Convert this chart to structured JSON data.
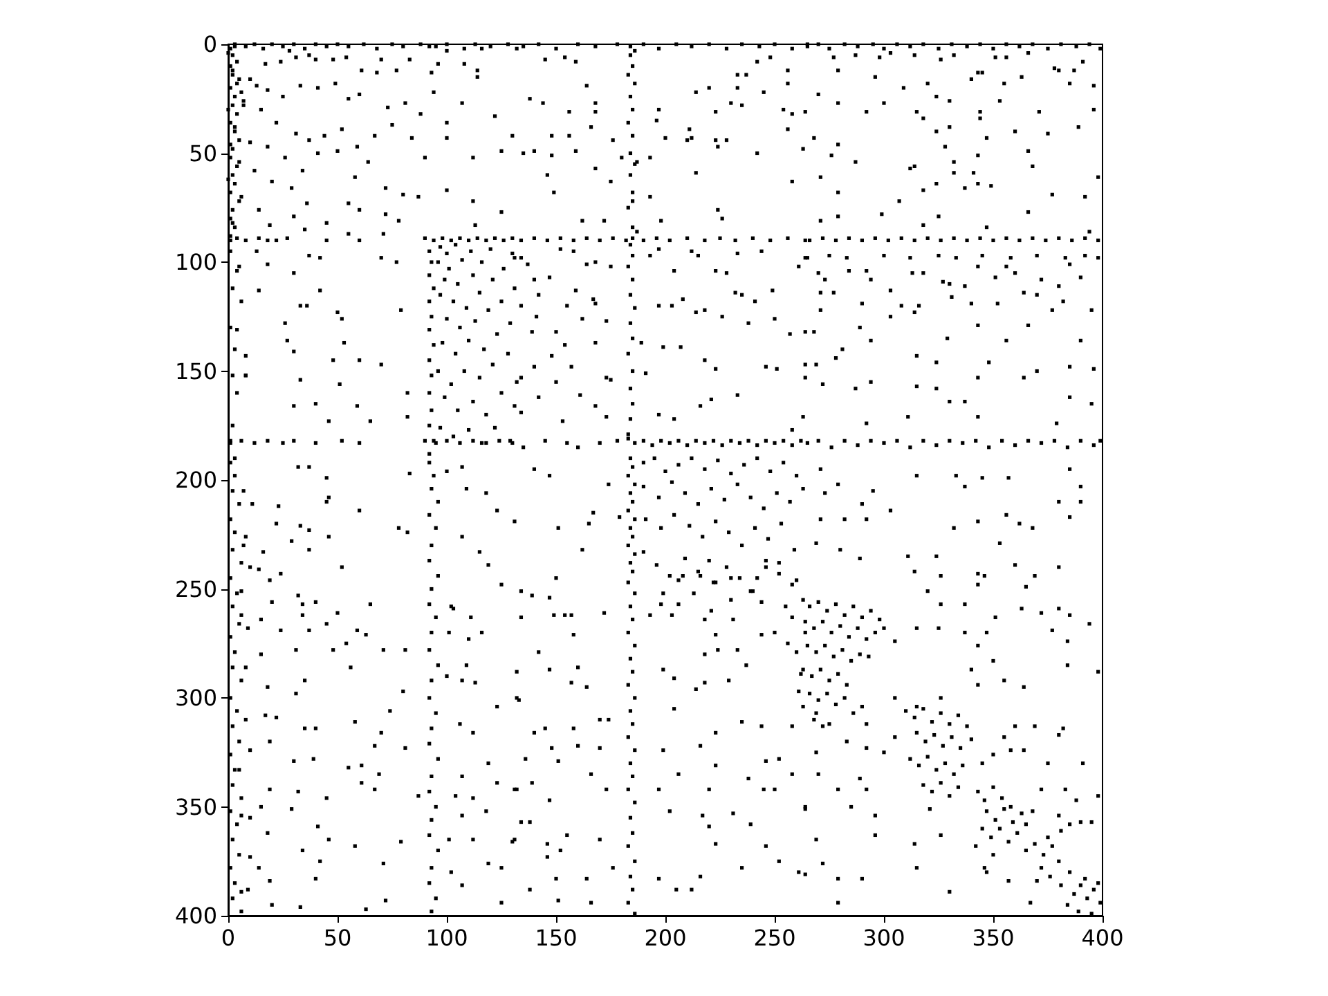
{
  "chart_data": {
    "type": "scatter",
    "color": "#000000",
    "marker": "square",
    "xlim": [
      0,
      400
    ],
    "ylim": [
      400,
      0
    ],
    "xticks": [
      0,
      50,
      100,
      150,
      200,
      250,
      300,
      350,
      400
    ],
    "yticks": [
      0,
      50,
      100,
      150,
      200,
      250,
      300,
      350,
      400
    ],
    "x": [
      1,
      3,
      2,
      4,
      1,
      2,
      5,
      1,
      3,
      2,
      4,
      1,
      3,
      5,
      2,
      1,
      4,
      2,
      3,
      1,
      5,
      2,
      1,
      3,
      1,
      0,
      2,
      4,
      6,
      0,
      3,
      7,
      1,
      5,
      0,
      6,
      2,
      1,
      4,
      2,
      6,
      1,
      3,
      2,
      4,
      8,
      2,
      1,
      3,
      3,
      8,
      12,
      16,
      20,
      25,
      30,
      35,
      40,
      45,
      50,
      55,
      62,
      68,
      75,
      80,
      88,
      95,
      100,
      108,
      113,
      120,
      128,
      28,
      37,
      48,
      17,
      24,
      31,
      40,
      54,
      61,
      70,
      77,
      83,
      92,
      93,
      94,
      96,
      100,
      108,
      114,
      116,
      132,
      10,
      13,
      18,
      25,
      33,
      41,
      49,
      55,
      60,
      68,
      73,
      81,
      88,
      100,
      107,
      114,
      122,
      130,
      7,
      15,
      22,
      31,
      37,
      44,
      52,
      59,
      67,
      75,
      84,
      90,
      100,
      112,
      125,
      10,
      18,
      26,
      34,
      41,
      50,
      58,
      64,
      72,
      80,
      87,
      100,
      112,
      125,
      12,
      20,
      29,
      36,
      45,
      55,
      60,
      72,
      78,
      14,
      19,
      30,
      35,
      55,
      71,
      113,
      1,
      4,
      8,
      14,
      18,
      22,
      27,
      45,
      60,
      90,
      94,
      98,
      102,
      106,
      110,
      114,
      118,
      122,
      126,
      130,
      92,
      93,
      92,
      94,
      92,
      93,
      92,
      94,
      92,
      93,
      92,
      93,
      92,
      94,
      92,
      97,
      100,
      104,
      96,
      101,
      107,
      111,
      99,
      105,
      112,
      116,
      120,
      97,
      103,
      109,
      115,
      121,
      126,
      130,
      100,
      106,
      113,
      119,
      125,
      131,
      98,
      104,
      110,
      117,
      123,
      129,
      96,
      102,
      108,
      115,
      121,
      128,
      132,
      99,
      105,
      112,
      118,
      125,
      131,
      97,
      103,
      110,
      116,
      122,
      129,
      33,
      50,
      27,
      53,
      8,
      30,
      48,
      60,
      70,
      8,
      33,
      51,
      82,
      30,
      40,
      59,
      46,
      65,
      82,
      5,
      13,
      18,
      30,
      14,
      42,
      36,
      26,
      52,
      4,
      79,
      37,
      42,
      70,
      77,
      1,
      6,
      12,
      18,
      25,
      30,
      40,
      52,
      60,
      90,
      95,
      100,
      106,
      112,
      118,
      124,
      130,
      135,
      142,
      150,
      160,
      168,
      178,
      184,
      186,
      190,
      197,
      205,
      212,
      220,
      228,
      235,
      243,
      250,
      258,
      265,
      184,
      185,
      183,
      186,
      184,
      185,
      183,
      185,
      184,
      186,
      184,
      185,
      183,
      185,
      145,
      154,
      159,
      164,
      138,
      144,
      168,
      156,
      168,
      148,
      156,
      135,
      140,
      148,
      159,
      166,
      176,
      180,
      187,
      193,
      197,
      196,
      200,
      210,
      212,
      211,
      214,
      220,
      223,
      223,
      228,
      224,
      233,
      237,
      233,
      230,
      235,
      242,
      248,
      245,
      256,
      256,
      254,
      258,
      264,
      256,
      263,
      242,
      146,
      168,
      149,
      175,
      214,
      224,
      226,
      258,
      193,
      185,
      162,
      172,
      198,
      187,
      134,
      140,
      146,
      152,
      158,
      164,
      170,
      176,
      182,
      185,
      190,
      196,
      202,
      210,
      218,
      225,
      232,
      240,
      248,
      256,
      264,
      131,
      134,
      137,
      140,
      147,
      152,
      158,
      164,
      168,
      175,
      159,
      167,
      142,
      134,
      141,
      155,
      162,
      168,
      173,
      139,
      150,
      154,
      168,
      148,
      140,
      157,
      173,
      134,
      150,
      142,
      161,
      134,
      153,
      173,
      168,
      184,
      185,
      183,
      185,
      184,
      186,
      184,
      185,
      183,
      185,
      184,
      185,
      184,
      183,
      193,
      197,
      204,
      212,
      215,
      223,
      228,
      233,
      244,
      264,
      261,
      232,
      235,
      241,
      249,
      208,
      203,
      197,
      214,
      218,
      226,
      238,
      250,
      257,
      264,
      189,
      199,
      207,
      218,
      246,
      251,
      264,
      191,
      175,
      223,
      264,
      233,
      216,
      221,
      197,
      204,
      258,
      263,
      178,
      183,
      186,
      190,
      194,
      198,
      202,
      206,
      210,
      214,
      218,
      222,
      226,
      230,
      234,
      238,
      242,
      246,
      250,
      254,
      258,
      262,
      135,
      145,
      155,
      160,
      170,
      265,
      270,
      275,
      282,
      288,
      295,
      300,
      306,
      312,
      318,
      325,
      331,
      338,
      344,
      350,
      356,
      362,
      368,
      375,
      381,
      388,
      394,
      399,
      277,
      287,
      298,
      303,
      314,
      326,
      332,
      343,
      351,
      356,
      366,
      380,
      387,
      391,
      396,
      270,
      279,
      296,
      309,
      320,
      324,
      340,
      345,
      355,
      363,
      378,
      385,
      279,
      300,
      292,
      315,
      318,
      330,
      344,
      344,
      353,
      371,
      375,
      389,
      396,
      268,
      276,
      279,
      287,
      347,
      330,
      324,
      328,
      332,
      343,
      360,
      366,
      368,
      271,
      312,
      314,
      324,
      332,
      341,
      343,
      349,
      337,
      318,
      279,
      307,
      377,
      392,
      398,
      279,
      299,
      318,
      325,
      347,
      366,
      394,
      271,
      266,
      272,
      278,
      284,
      290,
      296,
      302,
      308,
      314,
      320,
      326,
      332,
      338,
      344,
      350,
      356,
      362,
      368,
      374,
      380,
      386,
      392,
      398,
      265,
      275,
      283,
      300,
      312,
      325,
      333,
      345,
      358,
      370,
      383,
      392,
      398,
      270,
      273,
      284,
      292,
      294,
      303,
      313,
      318,
      327,
      330,
      337,
      343,
      351,
      356,
      360,
      372,
      380,
      385,
      390,
      271,
      277,
      290,
      308,
      316,
      331,
      340,
      352,
      364,
      370,
      377,
      382,
      395,
      271,
      289,
      303,
      314,
      343,
      356,
      366,
      390,
      268,
      281,
      294,
      315,
      324,
      329,
      348,
      364,
      370,
      385,
      396,
      269,
      272,
      287,
      294,
      315,
      324,
      343,
      385,
      395,
      330,
      337,
      292,
      311,
      343,
      379,
      278,
      265,
      270,
      276,
      282,
      288,
      294,
      300,
      306,
      312,
      318,
      324,
      330,
      336,
      342,
      348,
      354,
      360,
      366,
      372,
      378,
      384,
      390,
      396,
      399,
      1,
      3,
      2,
      5,
      1,
      3,
      2,
      6,
      1,
      4,
      2,
      5,
      1,
      3,
      2,
      6,
      1,
      4,
      2,
      5,
      1,
      3,
      2,
      6,
      1,
      4,
      2,
      5,
      1,
      3,
      2,
      6,
      8,
      9,
      8,
      10,
      9,
      92,
      94,
      93,
      96,
      92,
      95,
      93,
      92,
      96,
      93,
      92,
      95,
      93,
      92,
      96,
      93,
      92,
      95,
      93,
      92,
      96,
      93,
      92,
      95,
      93,
      92,
      96,
      93,
      92,
      95,
      93,
      100,
      102,
      101,
      100,
      104,
      101,
      102,
      7,
      32,
      37,
      45,
      45,
      46,
      60,
      23,
      11,
      22,
      33,
      37,
      46,
      83,
      78,
      82,
      7,
      16,
      29,
      37,
      24,
      10,
      14,
      52,
      19,
      6,
      32,
      34,
      40,
      34,
      20,
      15,
      6,
      50,
      65,
      59,
      63,
      24,
      37,
      45,
      54,
      48,
      71,
      81,
      56,
      31,
      15,
      8,
      35,
      18,
      31,
      80,
      74,
      17,
      22,
      35,
      40,
      58,
      70,
      81,
      67,
      10,
      19,
      30,
      39,
      55,
      61,
      69,
      5,
      19,
      32,
      45,
      61,
      67,
      87,
      15,
      6,
      29,
      41,
      18,
      46,
      58,
      79,
      10,
      34,
      14,
      42,
      71,
      40,
      19,
      6,
      20,
      33,
      63,
      72,
      107,
      109,
      118,
      123,
      107,
      115,
      119,
      125,
      103,
      111,
      116,
      110,
      109,
      107,
      113,
      123,
      106,
      112,
      119,
      107,
      112,
      118,
      123,
      107,
      112,
      119,
      125,
      130,
      132,
      132,
      107,
      125,
      184,
      185,
      183,
      186,
      184,
      185,
      183,
      186,
      184,
      185,
      183,
      186,
      184,
      185,
      183,
      186,
      184,
      185,
      183,
      186,
      184,
      185,
      183,
      186,
      184,
      185,
      183,
      186,
      184,
      185,
      183,
      186,
      184,
      185,
      183,
      186,
      184,
      185,
      183,
      186,
      190,
      195,
      200,
      206,
      212,
      218,
      224,
      230,
      236,
      242,
      248,
      254,
      260,
      190,
      197,
      203,
      209,
      215,
      221,
      227,
      233,
      239,
      245,
      251,
      257,
      263,
      191,
      198,
      204,
      211,
      217,
      223,
      229,
      235,
      241,
      247,
      253,
      259,
      190,
      196,
      202,
      209,
      215,
      222,
      228,
      234,
      240,
      246,
      252,
      258,
      199,
      206,
      213,
      221,
      230,
      244,
      255,
      134,
      149,
      154,
      157,
      172,
      158,
      142,
      132,
      160,
      157,
      164,
      147,
      170,
      174,
      145,
      140,
      158,
      136,
      148,
      151,
      160,
      170,
      166,
      139,
      173,
      147,
      138,
      155,
      146,
      170,
      152,
      146,
      150,
      164,
      176,
      138,
      151,
      166,
      131,
      134,
      131,
      133,
      193,
      203,
      198,
      206,
      208,
      216,
      220,
      223,
      230,
      239,
      242,
      246,
      252,
      260,
      264,
      258,
      256,
      260,
      262,
      261,
      263,
      258,
      244,
      235,
      223,
      216,
      223,
      204,
      199,
      204,
      214,
      218,
      229,
      237,
      244,
      250,
      233,
      224,
      218,
      231,
      218,
      223,
      246,
      252,
      258,
      238,
      245,
      250,
      264,
      239,
      246,
      252,
      261,
      220,
      217,
      220,
      231,
      223,
      235,
      216,
      212,
      205,
      197,
      202,
      197,
      206,
      199,
      263,
      266,
      270,
      274,
      278,
      282,
      286,
      290,
      294,
      298,
      264,
      268,
      272,
      276,
      280,
      284,
      288,
      292,
      296,
      265,
      269,
      273,
      277,
      281,
      285,
      289,
      263,
      267,
      271,
      275,
      279,
      283,
      266,
      270,
      274,
      278,
      282,
      268,
      272,
      286,
      293,
      300,
      305,
      271,
      279,
      290,
      295,
      303,
      315,
      333,
      337,
      345,
      357,
      362,
      368,
      380,
      385,
      390,
      385,
      390,
      271,
      282,
      292,
      311,
      324,
      332,
      343,
      356,
      269,
      280,
      289,
      314,
      320,
      326,
      337,
      343,
      346,
      351,
      360,
      365,
      363,
      372,
      380,
      385,
      380,
      394,
      377,
      384,
      384,
      369,
      353,
      343,
      326,
      315,
      325,
      337,
      347,
      343,
      350,
      340,
      355,
      364,
      398,
      273,
      310,
      314,
      318,
      322,
      326,
      330,
      334,
      338,
      315,
      319,
      323,
      327,
      331,
      335,
      340,
      312,
      316,
      320,
      324,
      328,
      332,
      336,
      318,
      322,
      326,
      330,
      334,
      345,
      350,
      355,
      360,
      305,
      300,
      305,
      343,
      346,
      350,
      354,
      358,
      347,
      351,
      355,
      359,
      363,
      345,
      349,
      353,
      357,
      361,
      365,
      368,
      350,
      342,
      346,
      365,
      369,
      373,
      377,
      380,
      372,
      376,
      381,
      385,
      370,
      387,
      390,
      393,
      396,
      399,
      384,
      389,
      395,
      392,
      398,
      381,
      375,
      269,
      275,
      283,
      269,
      292,
      270,
      279,
      289,
      292,
      264,
      285,
      296,
      269,
      272,
      264,
      279,
      290,
      315,
      330,
      314,
      326,
      321,
      296,
      279,
      347,
      357,
      367,
      380,
      385,
      390,
      395,
      369,
      380,
      382,
      391,
      375,
      358,
      364,
      372,
      383,
      398,
      388,
      343,
      326,
      315,
      290,
      292,
      140,
      147,
      165,
      162,
      151,
      131,
      150,
      134,
      139,
      147,
      167,
      174,
      179
    ],
    "values": [
      2,
      1,
      5,
      8,
      10,
      14,
      16,
      20,
      24,
      28,
      32,
      36,
      40,
      44,
      48,
      52,
      56,
      60,
      64,
      68,
      72,
      76,
      80,
      84,
      88,
      4,
      12,
      18,
      22,
      30,
      38,
      26,
      46,
      54,
      62,
      70,
      82,
      95,
      104,
      112,
      118,
      130,
      140,
      152,
      160,
      152,
      175,
      182,
      190,
      0,
      1,
      0,
      2,
      0,
      1,
      0,
      2,
      0,
      1,
      0,
      1,
      0,
      2,
      0,
      1,
      0,
      1,
      0,
      2,
      0,
      1,
      0,
      3,
      5,
      7,
      9,
      8,
      6,
      7,
      6,
      12,
      7,
      12,
      7,
      1,
      13,
      22,
      9,
      3,
      9,
      12,
      2,
      2,
      16,
      19,
      21,
      24,
      19,
      20,
      18,
      25,
      23,
      13,
      29,
      27,
      32,
      36,
      27,
      15,
      33,
      42,
      28,
      30,
      36,
      41,
      44,
      42,
      39,
      47,
      42,
      37,
      43,
      52,
      43,
      52,
      49,
      45,
      47,
      52,
      58,
      50,
      49,
      61,
      54,
      66,
      69,
      70,
      67,
      72,
      77,
      58,
      63,
      66,
      73,
      82,
      73,
      76,
      78,
      81,
      76,
      83,
      79,
      85,
      87,
      87,
      83,
      90,
      89,
      90,
      89,
      90,
      90,
      89,
      90,
      90,
      89,
      90,
      89,
      90,
      89,
      90,
      89,
      90,
      89,
      90,
      89,
      95,
      100,
      106,
      112,
      118,
      125,
      131,
      138,
      145,
      152,
      160,
      168,
      175,
      182,
      188,
      93,
      96,
      92,
      100,
      103,
      99,
      95,
      108,
      110,
      106,
      100,
      94,
      115,
      118,
      121,
      114,
      108,
      103,
      96,
      126,
      130,
      127,
      122,
      118,
      112,
      137,
      142,
      136,
      140,
      133,
      128,
      150,
      156,
      150,
      153,
      147,
      142,
      155,
      162,
      168,
      164,
      170,
      160,
      166,
      176,
      180,
      177,
      183,
      176,
      182,
      120,
      123,
      136,
      137,
      143,
      141,
      145,
      145,
      147,
      152,
      154,
      156,
      160,
      166,
      165,
      166,
      173,
      173,
      171,
      102,
      95,
      101,
      105,
      113,
      113,
      120,
      128,
      126,
      131,
      122,
      97,
      98,
      98,
      100,
      183,
      182,
      183,
      182,
      183,
      182,
      183,
      182,
      183,
      182,
      183,
      182,
      183,
      182,
      183,
      182,
      183,
      1,
      0,
      2,
      0,
      1,
      0,
      1,
      3,
      0,
      2,
      0,
      1,
      0,
      2,
      0,
      1,
      0,
      2,
      0,
      5,
      10,
      14,
      18,
      24,
      30,
      36,
      42,
      50,
      55,
      60,
      68,
      75,
      84,
      7,
      6,
      8,
      19,
      25,
      27,
      27,
      31,
      31,
      42,
      42,
      50,
      49,
      51,
      49,
      38,
      44,
      52,
      54,
      52,
      30,
      35,
      43,
      44,
      43,
      39,
      22,
      20,
      31,
      44,
      44,
      47,
      14,
      14,
      20,
      27,
      28,
      8,
      6,
      22,
      12,
      18,
      30,
      32,
      31,
      39,
      48,
      50,
      60,
      57,
      68,
      63,
      59,
      76,
      80,
      63,
      70,
      72,
      81,
      81,
      81,
      86,
      90,
      89,
      90,
      89,
      90,
      89,
      90,
      89,
      90,
      89,
      90,
      89,
      90,
      89,
      90,
      89,
      90,
      89,
      90,
      89,
      90,
      98,
      98,
      101,
      108,
      107,
      94,
      95,
      101,
      100,
      102,
      113,
      117,
      115,
      120,
      125,
      120,
      126,
      119,
      127,
      132,
      132,
      138,
      137,
      143,
      148,
      148,
      153,
      153,
      155,
      162,
      161,
      169,
      173,
      171,
      166,
      92,
      97,
      102,
      108,
      115,
      121,
      128,
      135,
      142,
      150,
      158,
      165,
      172,
      179,
      97,
      94,
      104,
      95,
      97,
      104,
      105,
      96,
      95,
      98,
      102,
      114,
      115,
      118,
      113,
      117,
      120,
      120,
      123,
      122,
      125,
      128,
      126,
      133,
      132,
      137,
      139,
      139,
      145,
      148,
      149,
      147,
      151,
      154,
      149,
      153,
      161,
      166,
      163,
      170,
      172,
      177,
      171,
      182,
      181,
      183,
      182,
      184,
      182,
      183,
      182,
      184,
      182,
      183,
      182,
      184,
      182,
      183,
      182,
      184,
      182,
      183,
      182,
      184,
      182,
      185,
      182,
      183,
      185,
      183,
      1,
      0,
      2,
      0,
      1,
      0,
      2,
      0,
      1,
      0,
      2,
      0,
      1,
      0,
      2,
      0,
      1,
      0,
      2,
      0,
      1,
      0,
      2,
      6,
      5,
      6,
      4,
      5,
      7,
      5,
      13,
      6,
      6,
      4,
      12,
      12,
      8,
      19,
      23,
      12,
      15,
      20,
      18,
      24,
      16,
      13,
      18,
      15,
      11,
      18,
      27,
      27,
      31,
      31,
      34,
      26,
      31,
      34,
      26,
      31,
      41,
      38,
      30,
      43,
      51,
      46,
      54,
      43,
      38,
      40,
      47,
      54,
      51,
      40,
      49,
      56,
      61,
      57,
      56,
      64,
      59,
      59,
      64,
      65,
      66,
      67,
      68,
      72,
      69,
      70,
      61,
      79,
      78,
      83,
      79,
      84,
      77,
      86,
      81,
      90,
      89,
      90,
      89,
      90,
      89,
      90,
      89,
      90,
      89,
      90,
      89,
      90,
      89,
      90,
      89,
      90,
      89,
      90,
      89,
      90,
      89,
      90,
      98,
      97,
      98,
      97,
      98,
      97,
      98,
      97,
      98,
      97,
      98,
      97,
      98,
      105,
      108,
      104,
      104,
      108,
      113,
      105,
      105,
      109,
      110,
      111,
      102,
      107,
      102,
      105,
      108,
      111,
      101,
      107,
      114,
      114,
      119,
      120,
      120,
      116,
      119,
      119,
      114,
      115,
      122,
      118,
      122,
      122,
      130,
      125,
      123,
      129,
      136,
      129,
      136,
      132,
      140,
      136,
      143,
      146,
      135,
      146,
      153,
      150,
      148,
      149,
      147,
      156,
      158,
      155,
      157,
      158,
      153,
      162,
      165,
      164,
      164,
      174,
      171,
      171,
      174,
      144,
      183,
      182,
      185,
      182,
      184,
      182,
      183,
      182,
      185,
      182,
      184,
      182,
      183,
      182,
      185,
      182,
      184,
      182,
      183,
      182,
      185,
      182,
      184,
      182,
      192,
      198,
      205,
      211,
      218,
      224,
      232,
      238,
      245,
      252,
      258,
      266,
      272,
      279,
      286,
      292,
      300,
      306,
      313,
      320,
      326,
      333,
      340,
      346,
      352,
      358,
      365,
      372,
      378,
      385,
      392,
      398,
      226,
      268,
      310,
      355,
      388,
      192,
      198,
      204,
      210,
      216,
      222,
      230,
      237,
      244,
      250,
      257,
      263,
      270,
      278,
      285,
      292,
      300,
      307,
      314,
      321,
      328,
      336,
      343,
      350,
      356,
      363,
      370,
      378,
      385,
      392,
      398,
      196,
      258,
      270,
      290,
      345,
      365,
      380,
      205,
      194,
      194,
      199,
      210,
      208,
      214,
      212,
      211,
      220,
      221,
      223,
      226,
      197,
      222,
      224,
      230,
      233,
      228,
      232,
      243,
      240,
      241,
      240,
      246,
      251,
      253,
      257,
      256,
      262,
      256,
      264,
      262,
      261,
      257,
      269,
      271,
      269,
      269,
      266,
      275,
      278,
      278,
      278,
      286,
      278,
      280,
      286,
      292,
      295,
      298,
      297,
      306,
      308,
      309,
      314,
      314,
      311,
      316,
      323,
      322,
      324,
      320,
      329,
      328,
      332,
      331,
      335,
      333,
      342,
      343,
      346,
      339,
      342,
      345,
      350,
      354,
      351,
      359,
      362,
      365,
      368,
      366,
      373,
      370,
      378,
      375,
      376,
      383,
      384,
      389,
      395,
      396,
      397,
      393,
      194,
      204,
      206,
      214,
      226,
      233,
      239,
      248,
      259,
      263,
      270,
      273,
      285,
      292,
      293,
      304,
      312,
      316,
      330,
      336,
      346,
      352,
      339,
      354,
      365,
      376,
      378,
      366,
      342,
      300,
      386,
      394,
      190,
      194,
      198,
      202,
      206,
      210,
      214,
      218,
      222,
      226,
      230,
      234,
      238,
      242,
      247,
      252,
      258,
      264,
      270,
      276,
      282,
      288,
      294,
      300,
      306,
      312,
      318,
      324,
      330,
      336,
      342,
      348,
      355,
      362,
      368,
      375,
      382,
      388,
      394,
      399,
      192,
      190,
      196,
      193,
      190,
      195,
      191,
      197,
      193,
      190,
      196,
      192,
      198,
      203,
      208,
      201,
      206,
      211,
      204,
      209,
      202,
      208,
      213,
      206,
      210,
      204,
      218,
      222,
      216,
      221,
      226,
      219,
      224,
      230,
      222,
      227,
      220,
      232,
      233,
      239,
      244,
      236,
      242,
      247,
      240,
      245,
      251,
      237,
      243,
      248,
      252,
      257,
      252,
      260,
      255,
      256,
      258,
      263,
      262,
      262,
      262,
      261,
      271,
      279,
      288,
      286,
      293,
      295,
      287,
      310,
      310,
      314,
      316,
      314,
      328,
      323,
      329,
      322,
      323,
      335,
      339,
      342,
      347,
      357,
      363,
      367,
      365,
      370,
      373,
      383,
      383,
      378,
      388,
      393,
      394,
      365,
      357,
      342,
      301,
      262,
      262,
      257,
      246,
      244,
      244,
      237,
      247,
      245,
      251,
      245,
      240,
      238,
      246,
      270,
      263,
      275,
      279,
      289,
      297,
      304,
      313,
      313,
      311,
      316,
      322,
      331,
      305,
      287,
      291,
      296,
      293,
      292,
      285,
      271,
      270,
      278,
      278,
      280,
      264,
      264,
      271,
      329,
      328,
      335,
      337,
      342,
      342,
      351,
      358,
      368,
      375,
      380,
      342,
      354,
      359,
      353,
      367,
      378,
      382,
      388,
      388,
      383,
      352,
      342,
      335,
      324,
      255,
      258,
      256,
      260,
      257,
      262,
      258,
      263,
      260,
      264,
      265,
      268,
      265,
      270,
      267,
      272,
      268,
      273,
      270,
      276,
      279,
      276,
      281,
      278,
      283,
      280,
      287,
      290,
      287,
      292,
      289,
      294,
      298,
      301,
      298,
      303,
      300,
      310,
      313,
      307,
      281,
      268,
      274,
      195,
      202,
      211,
      205,
      214,
      198,
      198,
      203,
      199,
      199,
      220,
      222,
      210,
      217,
      210,
      195,
      203,
      218,
      218,
      218,
      235,
      235,
      222,
      219,
      216,
      229,
      232,
      236,
      242,
      251,
      244,
      257,
      248,
      244,
      263,
      239,
      249,
      259,
      261,
      259,
      262,
      240,
      266,
      269,
      274,
      285,
      244,
      229,
      243,
      257,
      268,
      268,
      270,
      270,
      276,
      283,
      287,
      292,
      295,
      288,
      206,
      306,
      309,
      305,
      311,
      307,
      312,
      308,
      313,
      316,
      320,
      317,
      322,
      318,
      323,
      319,
      328,
      331,
      327,
      333,
      330,
      335,
      331,
      340,
      343,
      339,
      345,
      341,
      330,
      326,
      318,
      313,
      300,
      325,
      318,
      343,
      347,
      341,
      346,
      350,
      352,
      356,
      351,
      357,
      353,
      360,
      364,
      360,
      366,
      362,
      358,
      352,
      372,
      368,
      378,
      370,
      367,
      372,
      368,
      375,
      378,
      382,
      386,
      380,
      384,
      390,
      386,
      392,
      388,
      394,
      395,
      398,
      399,
      383,
      385,
      361,
      364,
      307,
      312,
      320,
      325,
      323,
      335,
      342,
      337,
      342,
      350,
      350,
      354,
      365,
      376,
      381,
      383,
      383,
      378,
      389,
      367,
      363,
      351,
      363,
      394,
      380,
      384,
      394,
      354,
      358,
      357,
      357,
      313,
      317,
      314,
      330,
      330,
      324,
      324,
      342,
      342,
      345,
      347,
      294,
      300,
      304,
      304,
      312,
      195,
      198,
      220,
      232,
      222,
      219,
      245,
      251,
      253,
      254,
      215,
      202,
      217
    ]
  }
}
